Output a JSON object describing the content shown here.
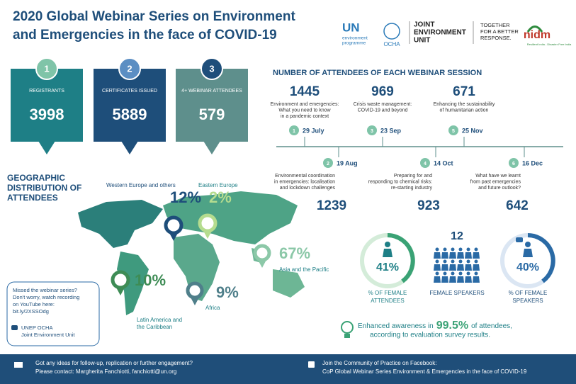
{
  "header": {
    "title": [
      "2020 Global Webinar Series on Environment",
      "and Emergencies in the face of COVID-19"
    ],
    "logos": {
      "un": "UN",
      "unep": [
        "environment",
        "programme"
      ],
      "ocha": "OCHA",
      "jeu": [
        "JOINT",
        "ENVIRONMENT",
        "UNIT"
      ],
      "slogan": [
        "TOGETHER",
        "FOR A BETTER",
        "RESPONSE."
      ],
      "nidm": "nidm",
      "nidm_tag": "Resilient India - Disaster Free India"
    }
  },
  "stats": [
    {
      "number": "1",
      "label": "REGISTRANTS",
      "value": "3998"
    },
    {
      "number": "2",
      "label": "CERTIFICATES ISSUED",
      "value": "5889"
    },
    {
      "number": "3",
      "label": "4+ WEBINAR ATTENDEES",
      "value": "579"
    }
  ],
  "sessions_title": "NUMBER OF ATTENDEES OF EACH WEBINAR SESSION",
  "sessions": [
    {
      "index": "1",
      "date": "29 July",
      "title": [
        "Environment and emergencies:",
        "What you need to know",
        "in a pandemic context"
      ],
      "attendees": "1445"
    },
    {
      "index": "2",
      "date": "19 Aug",
      "title": [
        "Environmental coordination",
        "in emergencies: localisation",
        "and lockdown challenges"
      ],
      "attendees": "1239"
    },
    {
      "index": "3",
      "date": "23 Sep",
      "title": [
        "Crisis waste management:",
        "COVID-19 and beyond"
      ],
      "attendees": "969"
    },
    {
      "index": "4",
      "date": "14 Oct",
      "title": [
        "Preparing for and",
        "responding to chemical risks:",
        "re-starting industry"
      ],
      "attendees": "923"
    },
    {
      "index": "5",
      "date": "25 Nov",
      "title": [
        "Enhancing the sustainability",
        "of humanitarian action"
      ],
      "attendees": "671"
    },
    {
      "index": "6",
      "date": "16 Dec",
      "title": [
        "What have we learnt",
        "from past emergencies",
        "and future outlook?"
      ],
      "attendees": "642"
    }
  ],
  "geo": {
    "title": [
      "GEOGRAPHIC",
      "DISTRIBUTION OF",
      "ATTENDEES"
    ],
    "regions": [
      {
        "name": [
          "Western Europe and others"
        ],
        "share": "12%"
      },
      {
        "name": [
          "Eastern Europe"
        ],
        "share": "2%"
      },
      {
        "name": [
          "Asia and the Pacific"
        ],
        "share": "67%"
      },
      {
        "name": [
          "Latin America and",
          "the Caribbean"
        ],
        "share": "10%"
      },
      {
        "name": [
          "Africa"
        ],
        "share": "9%"
      }
    ]
  },
  "missed": {
    "lines": [
      "Missed the webinar series?",
      "Don't worry, watch recording",
      "on YouTube here:",
      "bit.ly/2XSSOdg"
    ],
    "channel": [
      "UNEP OCHA",
      "Joint Environment Unit"
    ]
  },
  "gender": [
    {
      "value": "41%",
      "label": [
        "% OF FEMALE",
        "ATTENDEES"
      ]
    },
    {
      "value": "12",
      "label": [
        "FEMALE SPEAKERS"
      ]
    },
    {
      "value": "40%",
      "label": [
        "% OF FEMALE",
        "SPEAKERS"
      ]
    }
  ],
  "awareness": {
    "before": "Enhanced awareness in",
    "value": "99.5%",
    "after": "of attendees,",
    "line2": "according to evaluation survey results."
  },
  "footer": {
    "left": [
      "Got any ideas for follow-up, replication or further engagement?",
      "Please contact: Margherita Fanchiotti, fanchiotti@un.org"
    ],
    "right": [
      "Join the Community of Practice on Facebook:",
      "CoP Global Webinar Series Environment & Emergencies in the face of COVID-19"
    ]
  }
}
